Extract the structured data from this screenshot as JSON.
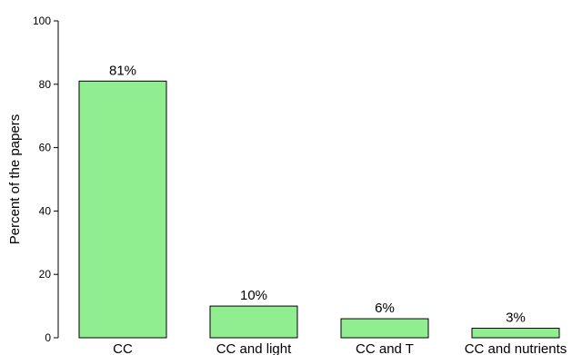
{
  "chart_data": {
    "type": "bar",
    "title": "",
    "xlabel": "",
    "ylabel": "Percent of the papers",
    "categories": [
      "CC",
      "CC and light",
      "CC and T",
      "CC and nutrients"
    ],
    "values": [
      81,
      10,
      6,
      3
    ],
    "value_labels": [
      "81%",
      "10%",
      "6%",
      "3%"
    ],
    "ylim": [
      0,
      100
    ],
    "yticks": [
      0,
      20,
      40,
      60,
      80,
      100
    ],
    "grid": false,
    "bar_color": "#90ee90",
    "bar_edge_color": "#000000"
  }
}
